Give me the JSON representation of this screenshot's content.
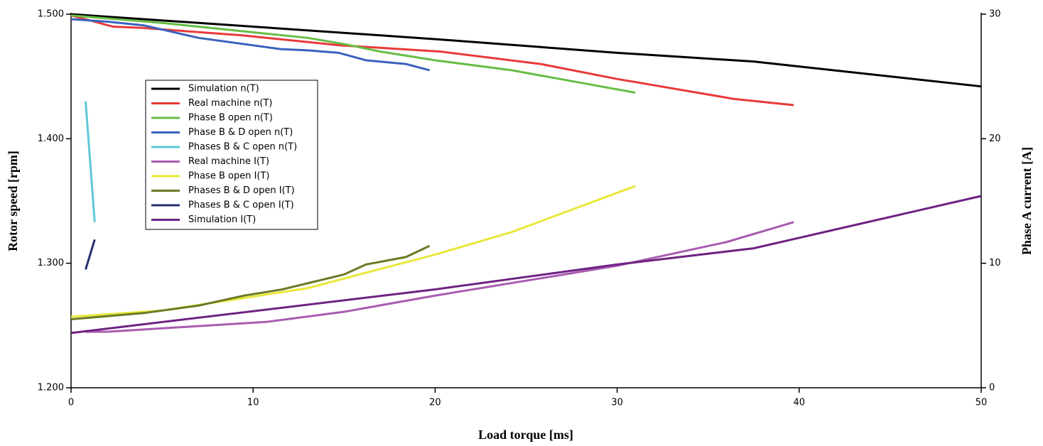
{
  "chart_data": {
    "type": "line",
    "xlabel": "Load torque [ms]",
    "ylabel": "Rotor speed [rpm]",
    "y2label": "Phase A current [A]",
    "xlim": [
      0,
      50
    ],
    "xticks": [
      0,
      10,
      20,
      30,
      40,
      50
    ],
    "ylim": [
      1200,
      1500
    ],
    "yticks": [
      {
        "value": 1200,
        "label": "1.200"
      },
      {
        "value": 1300,
        "label": "1.300"
      },
      {
        "value": 1400,
        "label": "1.400"
      },
      {
        "value": 1500,
        "label": "1.500"
      }
    ],
    "y2lim": [
      0,
      30
    ],
    "y2ticks": [
      0,
      10,
      20,
      30
    ],
    "grid": false,
    "legend": "upper left",
    "series": [
      {
        "name": "Simulation n(T)",
        "color": "#000000",
        "x": [
          0,
          10,
          20,
          30,
          37.5,
          40,
          50
        ],
        "values": [
          1500,
          1490,
          1480,
          1469,
          1462,
          1458,
          1442
        ]
      },
      {
        "name": "Real machine n(T)",
        "color": "#e8393a",
        "x": [
          0,
          1.3,
          2.3,
          3.9,
          9.4,
          14.8,
          20.3,
          25.8,
          30,
          36.4,
          39.7
        ],
        "values": [
          1499,
          1494,
          1490,
          1489,
          1483,
          1475,
          1470,
          1460,
          1448,
          1432,
          1427
        ]
      },
      {
        "name": "Phase B open n(T)",
        "color": "#67bd45",
        "x": [
          0,
          5,
          13,
          15,
          17,
          20,
          24.2,
          31
        ],
        "values": [
          1499,
          1493,
          1481,
          1476,
          1470,
          1463,
          1455,
          1437
        ]
      },
      {
        "name": "Phase B & D open n(T)",
        "color": "#3a62bd",
        "x": [
          0,
          2,
          4,
          7,
          11.5,
          13,
          14.7,
          16.2,
          18.4,
          19.7
        ],
        "values": [
          1496,
          1494,
          1491,
          1481,
          1472,
          1471,
          1469,
          1463,
          1460,
          1455
        ]
      },
      {
        "name": "Phases B & C open n(T)",
        "color": "#5dc8d8",
        "x": [
          0.8,
          1.3
        ],
        "values": [
          1430,
          1333
        ]
      },
      {
        "name": "Real machine I(T)",
        "color": "#a75cb0",
        "axis": "y2",
        "x": [
          0.8,
          2,
          10.8,
          15,
          20,
          30,
          36,
          39.7
        ],
        "values": [
          4.5,
          4.5,
          5.3,
          6.1,
          7.4,
          9.8,
          11.7,
          13.3
        ]
      },
      {
        "name": "Phase B open I(T)",
        "color": "#e8e83a",
        "axis": "y2",
        "x": [
          0,
          5,
          13,
          20,
          24.2,
          31
        ],
        "values": [
          5.7,
          6.2,
          8,
          10.7,
          12.5,
          16.2
        ]
      },
      {
        "name": "Phases B & D open I(T)",
        "color": "#6b7a26",
        "axis": "y2",
        "x": [
          0,
          4,
          7,
          9.5,
          11.6,
          15,
          16.2,
          18.4,
          19.7
        ],
        "values": [
          5.5,
          6,
          6.6,
          7.4,
          7.9,
          9.1,
          9.9,
          10.5,
          11.4
        ]
      },
      {
        "name": "Phases B & C open I(T)",
        "color": "#25306e",
        "axis": "y2",
        "x": [
          0.8,
          1.3
        ],
        "values": [
          9.5,
          11.9
        ]
      },
      {
        "name": "Simulation I(T)",
        "color": "#6e2283",
        "axis": "y2",
        "x": [
          0,
          20,
          30,
          37.5,
          50
        ],
        "values": [
          4.4,
          7.9,
          9.9,
          11.2,
          15.4
        ]
      }
    ]
  }
}
